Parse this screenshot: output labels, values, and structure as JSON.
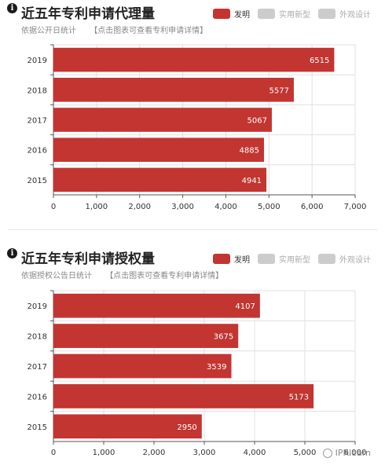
{
  "chart_data": [
    {
      "type": "bar",
      "orientation": "horizontal",
      "title": "近五年专利申请代理量",
      "subtitle": "依据公开日统计",
      "link_text": "【点击图表可查看专利申请详情】",
      "legend": [
        "发明",
        "实用新型",
        "外观设计"
      ],
      "categories": [
        "2019",
        "2018",
        "2017",
        "2016",
        "2015"
      ],
      "series": [
        {
          "name": "发明",
          "values": [
            6515,
            5577,
            5067,
            4885,
            4941
          ]
        }
      ],
      "xlim": [
        0,
        7000
      ],
      "xticks": [
        "0",
        "1,000",
        "2,000",
        "3,000",
        "4,000",
        "5,000",
        "6,000",
        "7,000"
      ],
      "grid": true,
      "legend_position": "top-right"
    },
    {
      "type": "bar",
      "orientation": "horizontal",
      "title": "近五年专利申请授权量",
      "subtitle": "依据授权公告日统计",
      "link_text": "【点击图表可查看专利申请详情】",
      "legend": [
        "发明",
        "实用新型",
        "外观设计"
      ],
      "categories": [
        "2019",
        "2018",
        "2017",
        "2016",
        "2015"
      ],
      "series": [
        {
          "name": "发明",
          "values": [
            4107,
            3675,
            3539,
            5173,
            2950
          ]
        }
      ],
      "xlim": [
        0,
        6000
      ],
      "xticks": [
        "0",
        "1,000",
        "2,000",
        "3,000",
        "4,000",
        "5,000",
        "6,000"
      ],
      "grid": true,
      "legend_position": "top-right"
    }
  ],
  "colors": {
    "bar": "#c23531",
    "legend_inactive": "#cccccc",
    "grid": "#e0e0e0"
  },
  "watermark": "IPRlearn"
}
